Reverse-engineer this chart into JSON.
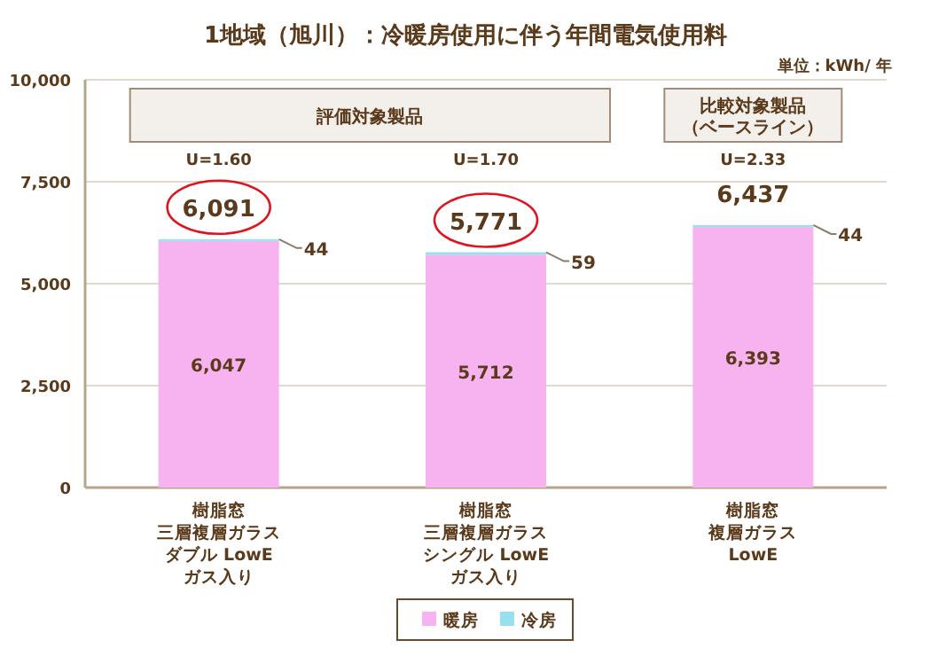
{
  "chart_data": {
    "type": "bar",
    "stacked": true,
    "title": "1地域（旭川）：冷暖房使用に伴う年間電気使用料",
    "categories": [
      "樹脂窓三層複層ガラスダブル LowEガス入り",
      "樹脂窓三層複層ガラスシングル LowEガス入り",
      "樹脂窓複層ガラスLowE"
    ],
    "series": [
      {
        "name": "暖房",
        "color": "#f7b3f0",
        "values": [
          6047,
          5712,
          6393
        ],
        "value_labels": [
          "6,047",
          "5,712",
          "6,393"
        ]
      },
      {
        "name": "冷房",
        "color": "#99e0ee",
        "values": [
          44,
          59,
          44
        ],
        "value_labels": [
          "44",
          "59",
          "44"
        ]
      }
    ],
    "totals": [
      "6,091",
      "5,771",
      "6,437"
    ],
    "ylim": [
      0,
      10000
    ],
    "yticks": [
      {
        "value": 0,
        "label": "0"
      },
      {
        "value": 2500,
        "label": "2,500"
      },
      {
        "value": 5000,
        "label": "5,000"
      },
      {
        "value": 7500,
        "label": "7,500"
      },
      {
        "value": 10000,
        "label": "10,000"
      }
    ],
    "grid": "y",
    "legend": "bottom",
    "annotations": [
      "単位：kWh/ 年",
      "評価対象製品",
      "比較対象製品（ベースライン）",
      "U=1.60",
      "U=1.70",
      "U=2.33"
    ]
  }
}
